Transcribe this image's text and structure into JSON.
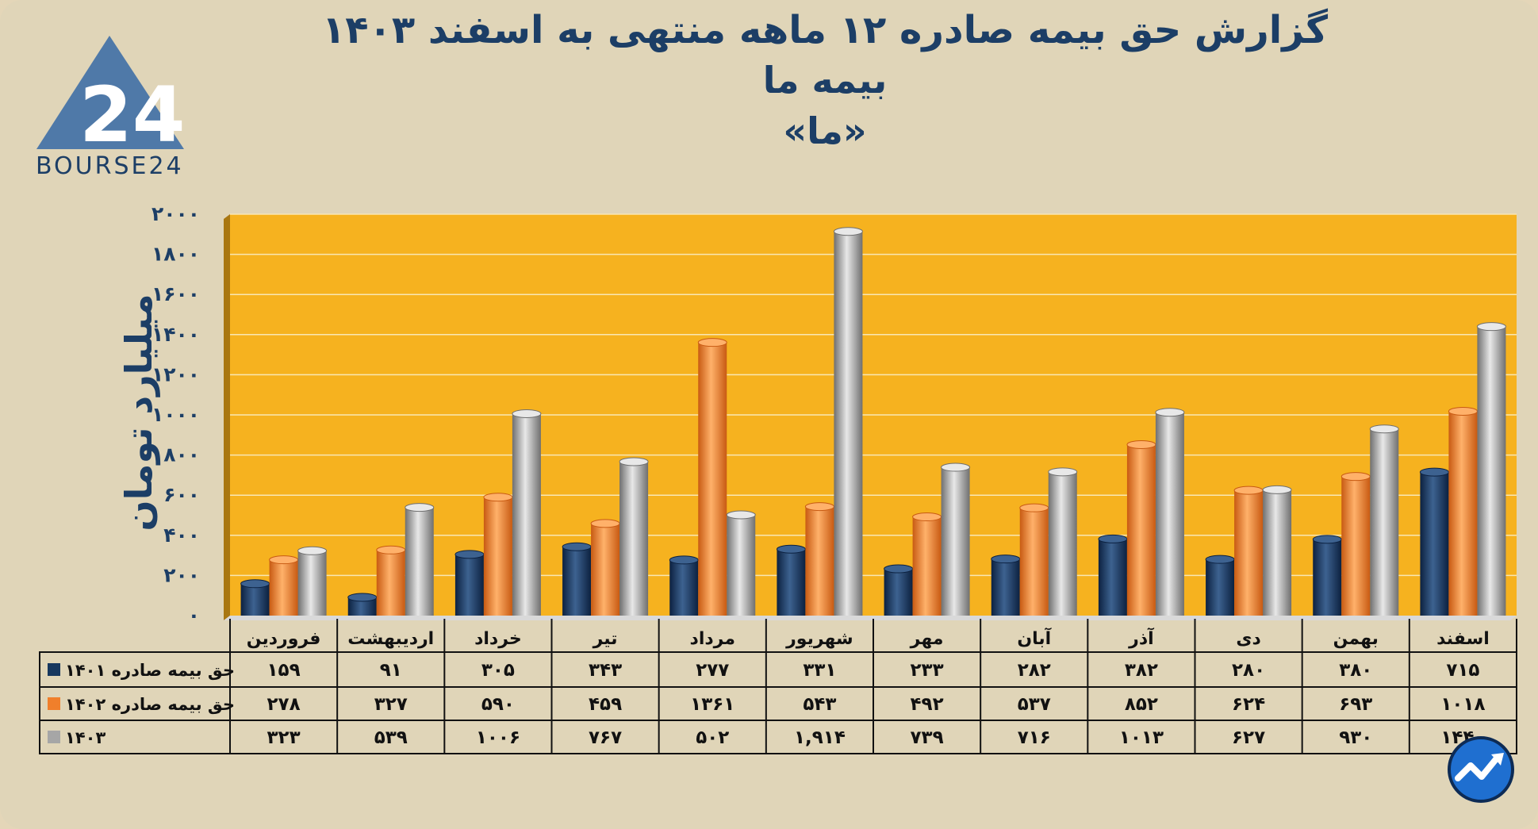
{
  "title": {
    "line1": "گزارش  حق بیمه صادره ۱۲ ماهه منتهی به اسفند ۱۴۰۳",
    "line2": "بیمه ما",
    "line3": "«ما»"
  },
  "logo": {
    "text": "BOURSE24",
    "mark": "24"
  },
  "colors": {
    "background": "#e0d5b8",
    "plot": "#f6b21f",
    "navy": "#1c3e66",
    "series_1401": "#17375e",
    "series_1402": "#f07f2b",
    "series_1403": "#a6a6a6"
  },
  "chart_data": {
    "type": "bar",
    "ylabel": "میلیارد تومان",
    "ylim": [
      0,
      2000
    ],
    "yticks": [
      0,
      200,
      400,
      600,
      800,
      1000,
      1200,
      1400,
      1600,
      1800,
      2000
    ],
    "ytick_labels": [
      "۰",
      "۲۰۰",
      "۴۰۰",
      "۶۰۰",
      "۸۰۰",
      "۱۰۰۰",
      "۱۲۰۰",
      "۱۴۰۰",
      "۱۶۰۰",
      "۱۸۰۰",
      "۲۰۰۰"
    ],
    "grid": true,
    "categories": [
      "فروردین",
      "اردیبهشت",
      "خرداد",
      "تیر",
      "مرداد",
      "شهریور",
      "مهر",
      "آبان",
      "آذر",
      "دی",
      "بهمن",
      "اسفند"
    ],
    "series": [
      {
        "name": "حق بیمه صادره ۱۴۰۱",
        "color": "#17375e",
        "values": [
          159,
          91,
          305,
          343,
          277,
          331,
          233,
          282,
          382,
          280,
          380,
          715
        ],
        "labels": [
          "۱۵۹",
          "۹۱",
          "۳۰۵",
          "۳۴۳",
          "۲۷۷",
          "۳۳۱",
          "۲۳۳",
          "۲۸۲",
          "۳۸۲",
          "۲۸۰",
          "۳۸۰",
          "۷۱۵"
        ]
      },
      {
        "name": "حق بیمه صادره ۱۴۰۲",
        "color": "#f07f2b",
        "values": [
          278,
          327,
          590,
          459,
          1361,
          543,
          492,
          537,
          852,
          624,
          693,
          1018
        ],
        "labels": [
          "۲۷۸",
          "۳۲۷",
          "۵۹۰",
          "۴۵۹",
          "۱۳۶۱",
          "۵۴۳",
          "۴۹۲",
          "۵۳۷",
          "۸۵۲",
          "۶۲۴",
          "۶۹۳",
          "۱۰۱۸"
        ]
      },
      {
        "name": "۱۴۰۳",
        "color": "#a6a6a6",
        "values": [
          323,
          539,
          1006,
          767,
          502,
          1914,
          739,
          716,
          1013,
          627,
          930,
          1440
        ],
        "labels": [
          "۳۲۳",
          "۵۳۹",
          "۱۰۰۶",
          "۷۶۷",
          "۵۰۲",
          "۱,۹۱۴",
          "۷۳۹",
          "۷۱۶",
          "۱۰۱۳",
          "۶۲۷",
          "۹۳۰",
          "۱۴۴۰"
        ]
      }
    ]
  }
}
